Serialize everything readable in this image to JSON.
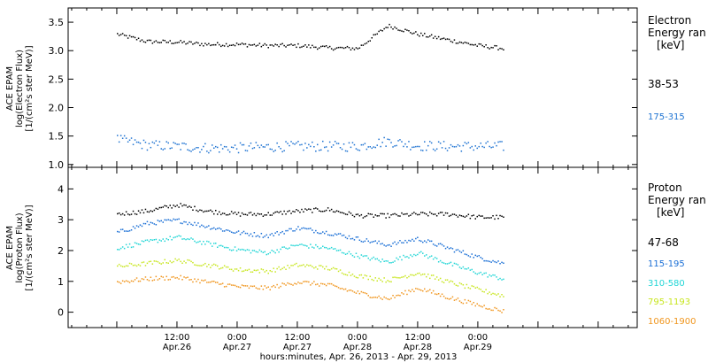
{
  "colors": {
    "black": "#000000",
    "electron_low": "#000000",
    "electron_high": "#1e73d2",
    "p1": "#000000",
    "p2": "#1a6fd6",
    "p3": "#22d6d6",
    "p4": "#c8e620",
    "p5": "#f0961e"
  },
  "chart_data": [
    {
      "type": "scatter",
      "panel": "electron",
      "ylabel_lines": [
        "ACE EPAM",
        "log(Electron Flux)",
        "[1/(cm²s ster MeV)]"
      ],
      "ylim": [
        0.95,
        3.75
      ],
      "yticks": [
        "1.0",
        "1.5",
        "2.0",
        "2.5",
        "3.0",
        "3.5"
      ],
      "ytick_values": [
        1.0,
        1.5,
        2.0,
        2.5,
        3.0,
        3.5
      ],
      "legend_title_lines": [
        "Electron",
        "Energy ran",
        "[keV]"
      ],
      "x_hours": [
        0,
        6,
        12,
        18,
        24,
        30,
        36,
        42,
        48,
        54,
        60,
        66,
        72,
        77
      ],
      "series": [
        {
          "name": "38-53",
          "color_key": "electron_low",
          "values": [
            3.3,
            3.17,
            3.16,
            3.12,
            3.12,
            3.1,
            3.1,
            3.06,
            3.05,
            3.45,
            3.3,
            3.2,
            3.1,
            3.05
          ]
        },
        {
          "name": "175-315",
          "color_key": "electron_high",
          "values": [
            1.45,
            1.35,
            1.33,
            1.3,
            1.3,
            1.32,
            1.33,
            1.33,
            1.33,
            1.42,
            1.34,
            1.33,
            1.33,
            1.33
          ]
        }
      ]
    },
    {
      "type": "scatter",
      "panel": "proton",
      "ylabel_lines": [
        "ACE EPAM",
        "log(Proton Flux)",
        "[1/(cm²s ster MeV)]"
      ],
      "ylim": [
        -0.5,
        4.7
      ],
      "yticks": [
        "0",
        "1",
        "2",
        "3",
        "4"
      ],
      "ytick_values": [
        0,
        1,
        2,
        3,
        4
      ],
      "legend_title_lines": [
        "Proton",
        "Energy ran",
        "[keV]"
      ],
      "x_hours": [
        0,
        6,
        12,
        18,
        24,
        30,
        36,
        42,
        48,
        54,
        60,
        66,
        72,
        77
      ],
      "series": [
        {
          "name": "47-68",
          "color_key": "p1",
          "values": [
            3.2,
            3.3,
            3.5,
            3.3,
            3.2,
            3.2,
            3.3,
            3.35,
            3.15,
            3.15,
            3.2,
            3.2,
            3.1,
            3.1
          ]
        },
        {
          "name": "115-195",
          "color_key": "p2",
          "values": [
            2.6,
            2.9,
            3.0,
            2.8,
            2.6,
            2.5,
            2.75,
            2.6,
            2.4,
            2.2,
            2.4,
            2.1,
            1.8,
            1.6
          ]
        },
        {
          "name": "310-580",
          "color_key": "p3",
          "values": [
            2.1,
            2.3,
            2.45,
            2.25,
            2.05,
            1.95,
            2.2,
            2.1,
            1.85,
            1.65,
            1.95,
            1.6,
            1.3,
            1.1
          ]
        },
        {
          "name": "795-1193",
          "color_key": "p4",
          "values": [
            1.5,
            1.6,
            1.7,
            1.55,
            1.4,
            1.35,
            1.55,
            1.45,
            1.2,
            1.05,
            1.3,
            1.0,
            0.75,
            0.55
          ]
        },
        {
          "name": "1060-1900",
          "color_key": "p5",
          "values": [
            1.0,
            1.1,
            1.15,
            1.0,
            0.85,
            0.8,
            1.0,
            0.9,
            0.65,
            0.45,
            0.8,
            0.5,
            0.25,
            0.05
          ]
        }
      ]
    }
  ],
  "xaxis": {
    "tick_hours": [
      12,
      24,
      36,
      48,
      60,
      72
    ],
    "time_labels": [
      "12:00",
      "0:00",
      "12:00",
      "0:00",
      "12:00",
      "0:00"
    ],
    "date_labels": [
      "Apr.26",
      "Apr.27",
      "Apr.27",
      "Apr.28",
      "Apr.28",
      "Apr.29"
    ],
    "title": "hours:minutes, Apr. 26, 2013 - Apr. 29, 2013"
  }
}
